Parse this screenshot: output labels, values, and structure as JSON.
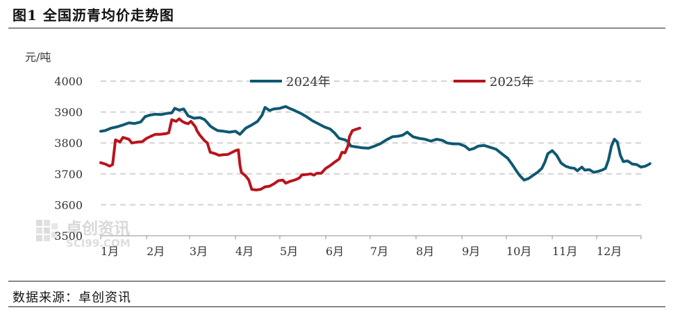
{
  "header": {
    "title": "图1 全国沥青均价走势图"
  },
  "footer": {
    "source": "数据来源：卓创资讯"
  },
  "watermark": {
    "name": "卓创资讯",
    "domain": "SCI99.COM"
  },
  "chart_data": {
    "type": "line",
    "title": "",
    "ylabel": "元/吨",
    "ylim": [
      3500,
      4000
    ],
    "yticks": [
      3500,
      3600,
      3700,
      3800,
      3900,
      4000
    ],
    "x_unit": "day_of_year",
    "xlim": [
      1,
      366
    ],
    "month_labels": [
      "1月",
      "2月",
      "3月",
      "4月",
      "5月",
      "6月",
      "7月",
      "8月",
      "9月",
      "10月",
      "11月",
      "12月"
    ],
    "month_starts": [
      1,
      32,
      61,
      92,
      122,
      153,
      183,
      214,
      245,
      275,
      306,
      336
    ],
    "grid": true,
    "legend_position": "top",
    "series": [
      {
        "name": "2024年",
        "color": "#0f5872",
        "points": [
          [
            1,
            3838
          ],
          [
            4,
            3840
          ],
          [
            8,
            3848
          ],
          [
            12,
            3852
          ],
          [
            16,
            3858
          ],
          [
            20,
            3865
          ],
          [
            24,
            3863
          ],
          [
            28,
            3868
          ],
          [
            31,
            3885
          ],
          [
            34,
            3890
          ],
          [
            38,
            3893
          ],
          [
            42,
            3892
          ],
          [
            46,
            3896
          ],
          [
            49,
            3897
          ],
          [
            51,
            3912
          ],
          [
            54,
            3906
          ],
          [
            57,
            3910
          ],
          [
            60,
            3888
          ],
          [
            64,
            3880
          ],
          [
            68,
            3882
          ],
          [
            71,
            3876
          ],
          [
            73,
            3866
          ],
          [
            75,
            3855
          ],
          [
            77,
            3848
          ],
          [
            80,
            3840
          ],
          [
            84,
            3838
          ],
          [
            88,
            3835
          ],
          [
            92,
            3838
          ],
          [
            95,
            3828
          ],
          [
            99,
            3848
          ],
          [
            103,
            3858
          ],
          [
            107,
            3870
          ],
          [
            110,
            3890
          ],
          [
            112,
            3915
          ],
          [
            115,
            3905
          ],
          [
            118,
            3910
          ],
          [
            122,
            3912
          ],
          [
            126,
            3918
          ],
          [
            128,
            3913
          ],
          [
            132,
            3905
          ],
          [
            136,
            3896
          ],
          [
            140,
            3885
          ],
          [
            144,
            3872
          ],
          [
            148,
            3862
          ],
          [
            152,
            3852
          ],
          [
            156,
            3845
          ],
          [
            159,
            3832
          ],
          [
            162,
            3815
          ],
          [
            166,
            3810
          ],
          [
            168,
            3805
          ],
          [
            170,
            3790
          ],
          [
            174,
            3787
          ],
          [
            178,
            3784
          ],
          [
            182,
            3783
          ],
          [
            186,
            3790
          ],
          [
            190,
            3798
          ],
          [
            194,
            3810
          ],
          [
            198,
            3820
          ],
          [
            202,
            3822
          ],
          [
            205,
            3825
          ],
          [
            208,
            3835
          ],
          [
            212,
            3820
          ],
          [
            216,
            3815
          ],
          [
            220,
            3812
          ],
          [
            224,
            3806
          ],
          [
            228,
            3812
          ],
          [
            232,
            3808
          ],
          [
            235,
            3800
          ],
          [
            239,
            3797
          ],
          [
            243,
            3797
          ],
          [
            247,
            3790
          ],
          [
            250,
            3778
          ],
          [
            253,
            3782
          ],
          [
            256,
            3790
          ],
          [
            260,
            3792
          ],
          [
            264,
            3786
          ],
          [
            268,
            3780
          ],
          [
            272,
            3765
          ],
          [
            276,
            3750
          ],
          [
            279,
            3730
          ],
          [
            282,
            3708
          ],
          [
            284,
            3695
          ],
          [
            287,
            3680
          ],
          [
            290,
            3685
          ],
          [
            293,
            3695
          ],
          [
            296,
            3705
          ],
          [
            299,
            3718
          ],
          [
            301,
            3738
          ],
          [
            303,
            3765
          ],
          [
            306,
            3775
          ],
          [
            309,
            3760
          ],
          [
            312,
            3735
          ],
          [
            315,
            3725
          ],
          [
            318,
            3720
          ],
          [
            321,
            3718
          ],
          [
            323,
            3710
          ],
          [
            326,
            3722
          ],
          [
            328,
            3712
          ],
          [
            331,
            3714
          ],
          [
            334,
            3705
          ],
          [
            337,
            3708
          ],
          [
            340,
            3713
          ],
          [
            342,
            3718
          ],
          [
            344,
            3745
          ],
          [
            346,
            3790
          ],
          [
            348,
            3812
          ],
          [
            350,
            3803
          ],
          [
            352,
            3760
          ],
          [
            354,
            3740
          ],
          [
            357,
            3742
          ],
          [
            360,
            3732
          ],
          [
            363,
            3730
          ],
          [
            366,
            3722
          ],
          [
            369,
            3725
          ],
          [
            371,
            3730
          ],
          [
            372,
            3733
          ]
        ]
      },
      {
        "name": "2025年",
        "color": "#b8141d",
        "points": [
          [
            1,
            3736
          ],
          [
            4,
            3732
          ],
          [
            7,
            3725
          ],
          [
            9,
            3730
          ],
          [
            11,
            3810
          ],
          [
            14,
            3803
          ],
          [
            16,
            3818
          ],
          [
            20,
            3812
          ],
          [
            22,
            3800
          ],
          [
            26,
            3803
          ],
          [
            29,
            3804
          ],
          [
            32,
            3815
          ],
          [
            35,
            3822
          ],
          [
            38,
            3828
          ],
          [
            41,
            3828
          ],
          [
            45,
            3830
          ],
          [
            47,
            3833
          ],
          [
            49,
            3875
          ],
          [
            52,
            3870
          ],
          [
            54,
            3878
          ],
          [
            56,
            3870
          ],
          [
            58,
            3865
          ],
          [
            60,
            3862
          ],
          [
            62,
            3870
          ],
          [
            65,
            3852
          ],
          [
            66,
            3840
          ],
          [
            68,
            3825
          ],
          [
            71,
            3808
          ],
          [
            73,
            3800
          ],
          [
            75,
            3770
          ],
          [
            78,
            3766
          ],
          [
            81,
            3760
          ],
          [
            84,
            3762
          ],
          [
            87,
            3763
          ],
          [
            89,
            3768
          ],
          [
            92,
            3775
          ],
          [
            94,
            3778
          ],
          [
            95,
            3730
          ],
          [
            96,
            3705
          ],
          [
            99,
            3693
          ],
          [
            101,
            3680
          ],
          [
            103,
            3650
          ],
          [
            106,
            3648
          ],
          [
            109,
            3650
          ],
          [
            112,
            3658
          ],
          [
            115,
            3660
          ],
          [
            118,
            3668
          ],
          [
            121,
            3678
          ],
          [
            124,
            3680
          ],
          [
            126,
            3670
          ],
          [
            129,
            3676
          ],
          [
            132,
            3680
          ],
          [
            135,
            3686
          ],
          [
            137,
            3697
          ],
          [
            140,
            3698
          ],
          [
            143,
            3700
          ],
          [
            145,
            3696
          ],
          [
            147,
            3702
          ],
          [
            150,
            3702
          ],
          [
            153,
            3718
          ],
          [
            156,
            3727
          ],
          [
            159,
            3738
          ],
          [
            162,
            3748
          ],
          [
            164,
            3770
          ],
          [
            166,
            3768
          ],
          [
            168,
            3790
          ],
          [
            169,
            3820
          ],
          [
            171,
            3840
          ],
          [
            174,
            3845
          ],
          [
            176,
            3848
          ]
        ]
      }
    ]
  }
}
